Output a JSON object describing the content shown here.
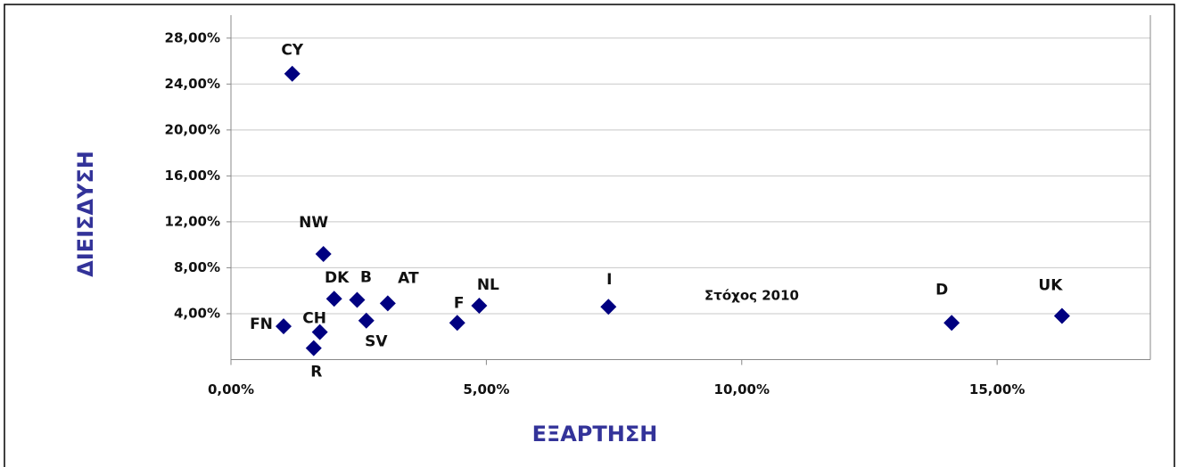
{
  "chart_data": {
    "type": "scatter",
    "x_label": "ΕΞΑΡΤΗΣΗ",
    "y_label": "ΔΙΕΙΣΔΥΣΗ",
    "annotation": "Στόχος 2010",
    "labels": [
      "CY",
      "NW",
      "DK",
      "B",
      "AT",
      "SV",
      "CH",
      "FN",
      "R",
      "F",
      "NL",
      "I",
      "D",
      "UK"
    ],
    "x": [
      1.2,
      1.81,
      2.02,
      2.47,
      3.07,
      2.65,
      1.74,
      1.03,
      1.62,
      4.43,
      4.86,
      7.39,
      14.11,
      16.27
    ],
    "values": [
      24.9,
      9.2,
      5.3,
      5.2,
      4.9,
      3.4,
      2.4,
      2.9,
      1.0,
      3.2,
      4.7,
      4.6,
      3.2,
      3.8
    ],
    "color": "#000080",
    "xlim": [
      0,
      18
    ],
    "ylim": [
      0,
      30
    ],
    "xticks": [
      {
        "value": 0,
        "label": "0,00%"
      },
      {
        "value": 5,
        "label": "5,00%"
      },
      {
        "value": 10,
        "label": "10,00%"
      },
      {
        "value": 15,
        "label": "15,00%"
      }
    ],
    "yticks": [
      {
        "value": 4,
        "label": "4,00%"
      },
      {
        "value": 8,
        "label": "8,00%"
      },
      {
        "value": 12,
        "label": "12,00%"
      },
      {
        "value": 16,
        "label": "16,00%"
      },
      {
        "value": 20,
        "label": "20,00%"
      },
      {
        "value": 24,
        "label": "24,00%"
      },
      {
        "value": 28,
        "label": "28,00%"
      }
    ],
    "grid": true
  }
}
